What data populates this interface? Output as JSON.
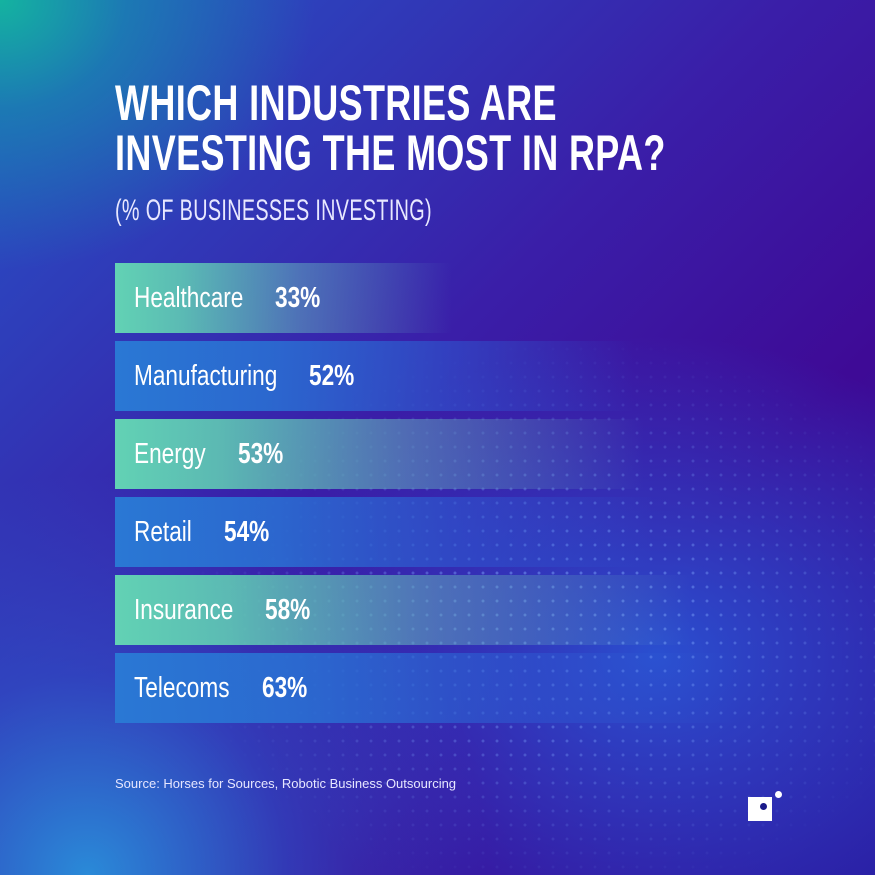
{
  "chart_data": {
    "type": "bar",
    "orientation": "horizontal",
    "title": "WHICH INDUSTRIES ARE INVESTING THE MOST IN RPA?",
    "title_lines": [
      "WHICH INDUSTRIES ARE",
      "INVESTING THE MOST IN RPA?"
    ],
    "subtitle": "(% OF BUSINESSES INVESTING)",
    "categories": [
      "Healthcare",
      "Manufacturing",
      "Energy",
      "Retail",
      "Insurance",
      "Telecoms"
    ],
    "values": [
      33,
      52,
      53,
      54,
      58,
      63
    ],
    "value_labels": [
      "33%",
      "52%",
      "53%",
      "54%",
      "58%",
      "63%"
    ],
    "bar_colors": [
      "#62d2b4",
      "#2a78d4",
      "#62d2b4",
      "#2a78d4",
      "#62d2b4",
      "#2a78d4"
    ],
    "grid": false,
    "source": "Source: Horses for Sources, Robotic Business Outsourcing"
  },
  "logo": {
    "icon": "square-dot-logo"
  }
}
